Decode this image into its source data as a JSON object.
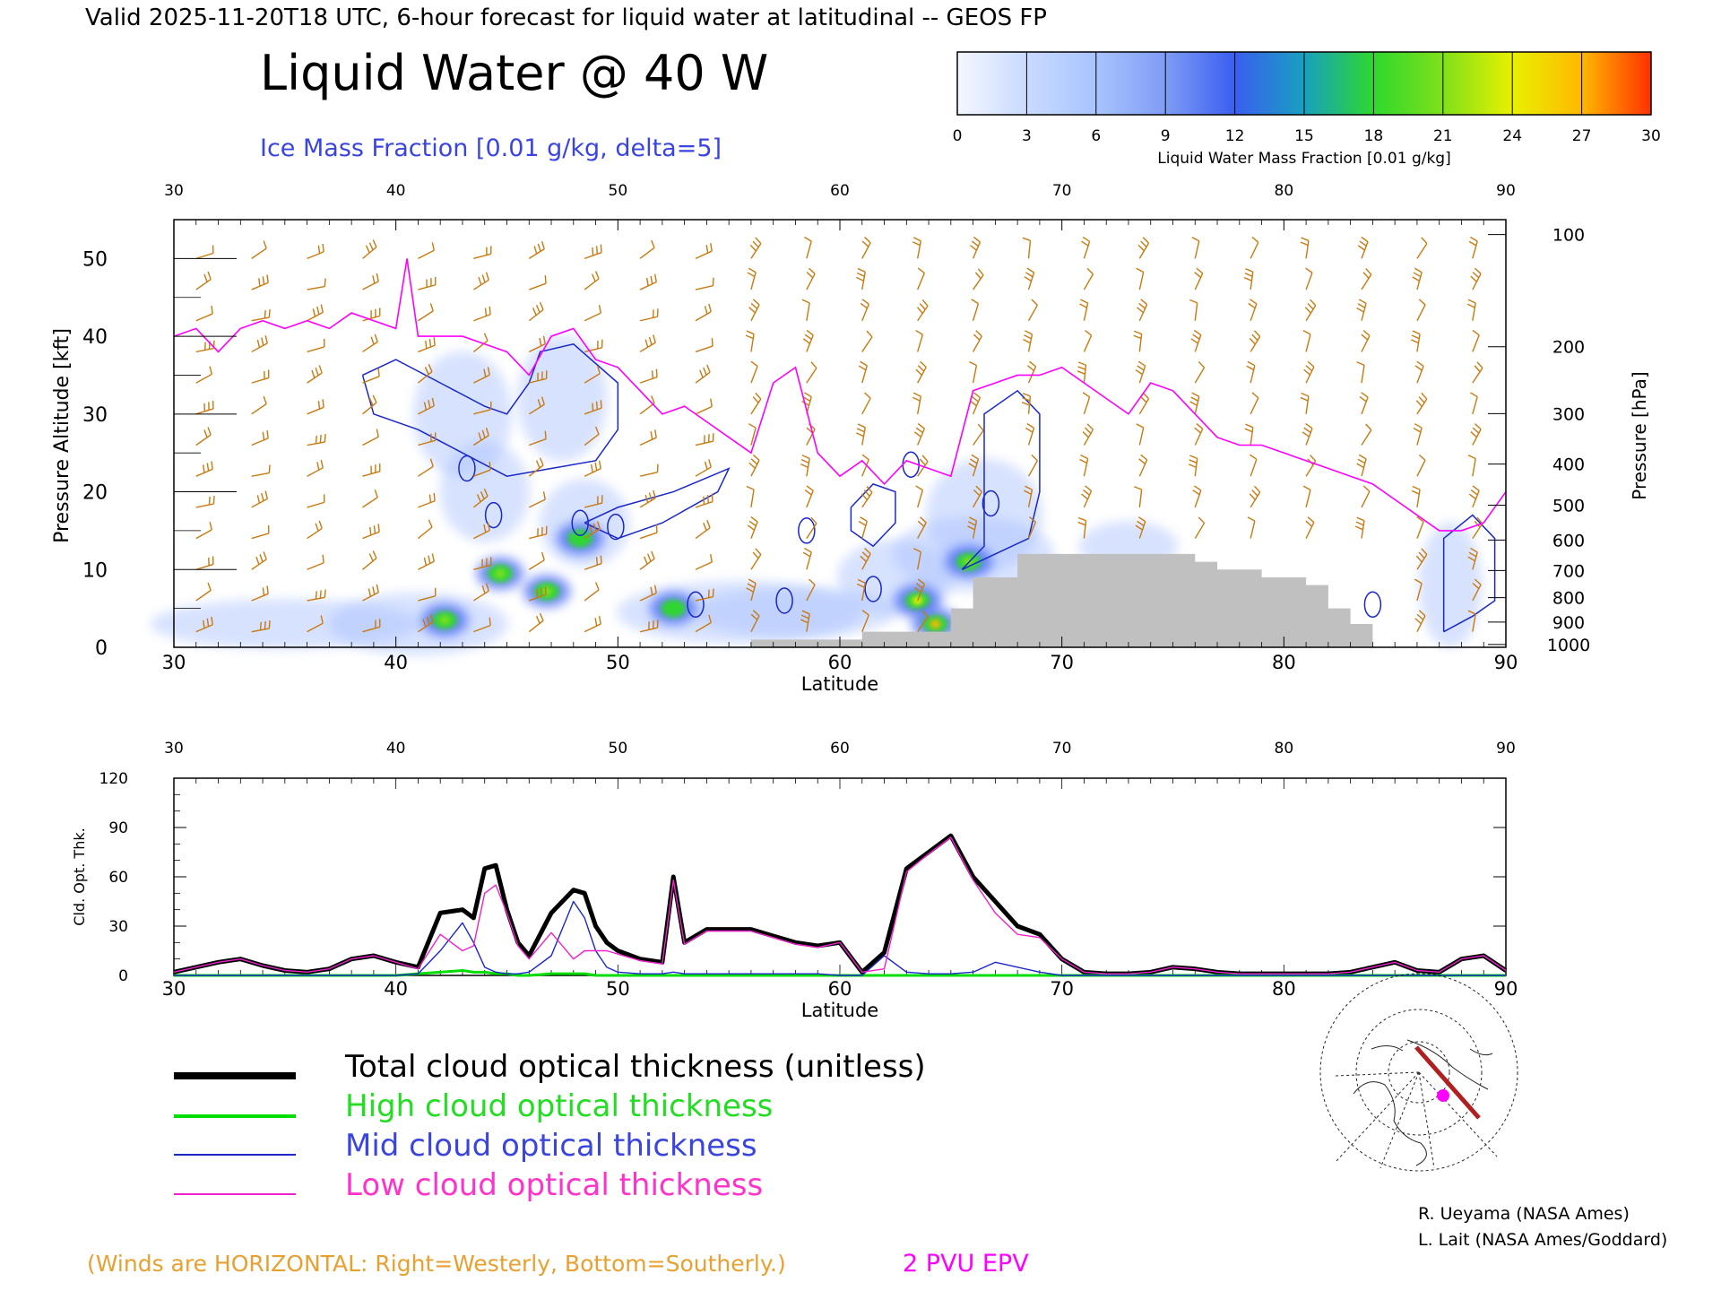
{
  "header": {
    "valid_line": "Valid 2025-11-20T18 UTC, 6-hour forecast for liquid water at latitudinal -- GEOS FP",
    "title": "Liquid Water @ 40 W",
    "subtitle": "Ice Mass Fraction [0.01 g/kg, delta=5]"
  },
  "colorbar": {
    "ticks": [
      "0",
      "3",
      "6",
      "9",
      "12",
      "15",
      "18",
      "21",
      "24",
      "27",
      "30"
    ],
    "label": "Liquid Water Mass Fraction [0.01 g/kg]",
    "colors": [
      "#f4f7ff",
      "#c9daff",
      "#a8c4ff",
      "#7f9cf5",
      "#3a5ef0",
      "#18a0c0",
      "#2ed82e",
      "#7fe01a",
      "#e8f000",
      "#ffb800",
      "#ff5a00"
    ]
  },
  "colors": {
    "epv": "#ff00ff",
    "ice_contour": "#1a28c8",
    "barb": "#c87a10",
    "terrain": "#c0c0c0",
    "total": "#000000",
    "high": "#00dd00",
    "mid": "#1a28c8",
    "low": "#ee22cc",
    "winds_note": "#e8a030",
    "attribution": "#000000"
  },
  "top_panel": {
    "top_axis_ticks": [
      "30",
      "40",
      "50",
      "60",
      "70",
      "80",
      "90"
    ],
    "bottom_axis_ticks": [
      "30",
      "40",
      "50",
      "60",
      "70",
      "80",
      "90"
    ],
    "xlabel": "Latitude",
    "left_ylabel": "Pressure Altitude [kft]",
    "left_ticks": [
      "0",
      "10",
      "20",
      "30",
      "40",
      "50"
    ],
    "right_ylabel": "Pressure [hPa]",
    "right_ticks": [
      "100",
      "200",
      "300",
      "400",
      "500",
      "600",
      "700",
      "800",
      "900",
      "1000"
    ]
  },
  "bottom_panel": {
    "top_axis_ticks": [
      "30",
      "40",
      "50",
      "60",
      "70",
      "80",
      "90"
    ],
    "bottom_axis_ticks": [
      "30",
      "40",
      "50",
      "60",
      "70",
      "80",
      "90"
    ],
    "xlabel": "Latitude",
    "ylabel": "Cld. Opt. Thk.",
    "y_ticks": [
      "0",
      "30",
      "60",
      "90",
      "120"
    ]
  },
  "legend": {
    "total": "Total cloud optical thickness (unitless)",
    "high": "High cloud optical thickness",
    "mid": "Mid cloud optical thickness",
    "low": "Low cloud optical thickness"
  },
  "footer": {
    "winds_note": "(Winds are HORIZONTAL: Right=Westerly, Bottom=Southerly.)",
    "epv_label": "2 PVU EPV",
    "credit1": "R. Ueyama (NASA Ames)",
    "credit2": "L. Lait (NASA Ames/Goddard)"
  },
  "chart_data": [
    {
      "type": "heatmap",
      "title": "Liquid Water @ 40 W",
      "xlabel": "Latitude",
      "ylabel": "Pressure Altitude [kft]",
      "xlim": [
        30,
        90
      ],
      "ylim": [
        0,
        55
      ],
      "epv_2pvu_kft": {
        "x": [
          30,
          31,
          32,
          33,
          34,
          35,
          36,
          37,
          38,
          39,
          40,
          40.5,
          41,
          42,
          43,
          44,
          45,
          46,
          47,
          48,
          49,
          50,
          51,
          52,
          53,
          54,
          55,
          56,
          57,
          58,
          59,
          60,
          61,
          62,
          63,
          64,
          65,
          66,
          67,
          68,
          69,
          70,
          71,
          72,
          73,
          74,
          75,
          76,
          77,
          78,
          79,
          80,
          81,
          82,
          83,
          84,
          85,
          86,
          87,
          88,
          89,
          90
        ],
        "y": [
          40,
          41,
          38,
          41,
          42,
          41,
          42,
          41,
          43,
          42,
          41,
          50,
          40,
          40,
          40,
          39,
          38,
          35,
          40,
          41,
          37,
          36,
          33,
          30,
          31,
          29,
          27,
          25,
          34,
          36,
          25,
          22,
          24,
          21,
          24,
          23,
          22,
          33,
          34,
          35,
          35,
          36,
          34,
          32,
          30,
          34,
          33,
          30,
          27,
          26,
          26,
          25,
          24,
          23,
          22,
          21,
          19,
          17,
          15,
          15,
          16,
          20
        ]
      },
      "liquid_water_maxima": [
        {
          "lat": 42.2,
          "kft": 3.5,
          "value": 20
        },
        {
          "lat": 44.7,
          "kft": 9.5,
          "value": 21
        },
        {
          "lat": 46.8,
          "kft": 7.2,
          "value": 22
        },
        {
          "lat": 48.3,
          "kft": 14,
          "value": 17
        },
        {
          "lat": 52.5,
          "kft": 5,
          "value": 17
        },
        {
          "lat": 63.5,
          "kft": 6,
          "value": 24
        },
        {
          "lat": 64.3,
          "kft": 3,
          "value": 26
        },
        {
          "lat": 65.8,
          "kft": 11,
          "value": 22
        }
      ],
      "terrain_top_kft": {
        "x": [
          56,
          60,
          61,
          64,
          65,
          66,
          68,
          76,
          77,
          79,
          81,
          82,
          83,
          84
        ],
        "y": [
          1,
          1,
          2,
          2,
          5,
          9,
          12,
          11,
          10,
          9,
          8,
          5,
          3,
          0
        ]
      }
    },
    {
      "type": "line",
      "xlabel": "Latitude",
      "ylabel": "Cld. Opt. Thk.",
      "xlim": [
        30,
        90
      ],
      "ylim": [
        0,
        120
      ],
      "x": [
        30,
        31,
        32,
        33,
        34,
        35,
        36,
        37,
        38,
        39,
        40,
        41,
        42,
        43,
        43.5,
        44,
        44.5,
        45,
        45.5,
        46,
        47,
        48,
        48.5,
        49,
        49.5,
        50,
        51,
        52,
        52.5,
        53,
        54,
        55,
        56,
        57,
        58,
        59,
        60,
        61,
        62,
        63,
        64,
        65,
        66,
        67,
        68,
        69,
        70,
        71,
        72,
        73,
        74,
        75,
        76,
        77,
        78,
        79,
        80,
        81,
        82,
        83,
        84,
        85,
        86,
        87,
        88,
        89,
        90
      ],
      "series": [
        {
          "name": "Total cloud optical thickness (unitless)",
          "values": [
            2,
            5,
            8,
            10,
            6,
            3,
            2,
            4,
            10,
            12,
            8,
            5,
            38,
            40,
            35,
            65,
            67,
            40,
            20,
            12,
            38,
            52,
            50,
            30,
            20,
            15,
            10,
            8,
            60,
            20,
            28,
            28,
            28,
            24,
            20,
            18,
            20,
            2,
            14,
            65,
            75,
            85,
            60,
            45,
            30,
            25,
            10,
            2,
            1,
            1,
            2,
            5,
            4,
            2,
            1,
            1,
            1,
            1,
            1,
            2,
            5,
            8,
            3,
            2,
            10,
            12,
            3
          ]
        },
        {
          "name": "High cloud optical thickness",
          "values": [
            0,
            0,
            0,
            0,
            0,
            0,
            0,
            0,
            0,
            0,
            0,
            1,
            2,
            3,
            2,
            2,
            1,
            1,
            0,
            0,
            1,
            1,
            1,
            0,
            0,
            0,
            0,
            0,
            0,
            0,
            0,
            0,
            0,
            0,
            0,
            0,
            0,
            0,
            0,
            0,
            0,
            0,
            0,
            0,
            0,
            0,
            0,
            0,
            0,
            0,
            0,
            0,
            0,
            0,
            0,
            0,
            0,
            0,
            0,
            0,
            0,
            0,
            0,
            0,
            0,
            0,
            0
          ]
        },
        {
          "name": "Mid cloud optical thickness",
          "values": [
            0,
            0,
            0,
            0,
            0,
            0,
            0,
            0,
            0,
            0,
            0,
            1,
            15,
            32,
            20,
            5,
            2,
            1,
            1,
            2,
            12,
            45,
            35,
            15,
            5,
            2,
            1,
            1,
            2,
            1,
            1,
            1,
            1,
            1,
            1,
            1,
            0,
            0,
            12,
            2,
            1,
            1,
            2,
            8,
            5,
            2,
            0,
            0,
            0,
            0,
            0,
            0,
            0,
            0,
            0,
            0,
            0,
            0,
            0,
            0,
            0,
            0,
            0,
            0,
            0,
            0,
            0
          ]
        },
        {
          "name": "Low cloud optical thickness",
          "values": [
            2,
            5,
            8,
            10,
            6,
            3,
            2,
            4,
            10,
            12,
            8,
            4,
            25,
            15,
            18,
            50,
            55,
            38,
            18,
            10,
            26,
            10,
            15,
            15,
            15,
            13,
            9,
            7,
            58,
            19,
            27,
            27,
            27,
            23,
            19,
            17,
            20,
            2,
            4,
            63,
            74,
            84,
            58,
            38,
            25,
            23,
            10,
            2,
            1,
            1,
            2,
            5,
            4,
            2,
            1,
            1,
            1,
            1,
            1,
            2,
            5,
            8,
            3,
            2,
            10,
            12,
            3
          ]
        }
      ]
    }
  ]
}
